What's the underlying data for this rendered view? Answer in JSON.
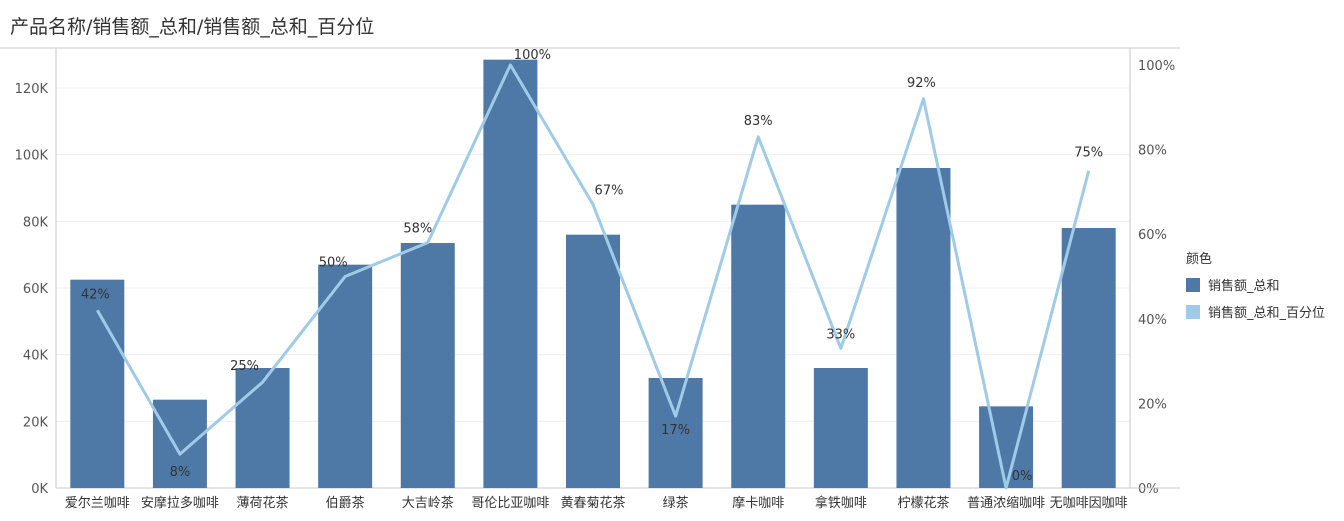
{
  "title": "产品名称/销售额_总和/销售额_总和_百分位",
  "legend": {
    "title": "颜色",
    "items": [
      {
        "label": "销售额_总和",
        "color": "#4e79a7"
      },
      {
        "label": "销售额_总和_百分位",
        "color": "#a0cbe8"
      }
    ]
  },
  "chart_data": {
    "type": "bar",
    "categories": [
      "爱尔兰咖啡",
      "安摩拉多咖啡",
      "薄荷花茶",
      "伯爵茶",
      "大吉岭茶",
      "哥伦比亚咖啡",
      "黄春菊花茶",
      "绿茶",
      "摩卡咖啡",
      "拿铁咖啡",
      "柠檬花茶",
      "普通浓缩咖啡",
      "无咖啡因咖啡"
    ],
    "series": [
      {
        "name": "销售额_总和",
        "type": "bar",
        "axis": "left",
        "color": "#4e79a7",
        "values": [
          62500,
          26500,
          36000,
          67000,
          73500,
          128500,
          76000,
          33000,
          85000,
          36000,
          96000,
          24500,
          78000
        ]
      },
      {
        "name": "销售额_总和_百分位",
        "type": "line",
        "axis": "right",
        "color": "#a0cbe8",
        "values": [
          42,
          8,
          25,
          50,
          58,
          100,
          67,
          17,
          83,
          33,
          92,
          0,
          75
        ],
        "labels": [
          "42%",
          "8%",
          "25%",
          "50%",
          "58%",
          "100%",
          "67%",
          "17%",
          "83%",
          "33%",
          "92%",
          "0%",
          "75%"
        ]
      }
    ],
    "y_left": {
      "ticks": [
        "0K",
        "20K",
        "40K",
        "60K",
        "80K",
        "100K",
        "120K"
      ],
      "ylim": [
        0,
        132000
      ]
    },
    "y_right": {
      "ticks": [
        "0%",
        "20%",
        "40%",
        "60%",
        "80%",
        "100%"
      ],
      "ylim": [
        0,
        104
      ]
    },
    "grid": true,
    "legend_position": "right"
  }
}
